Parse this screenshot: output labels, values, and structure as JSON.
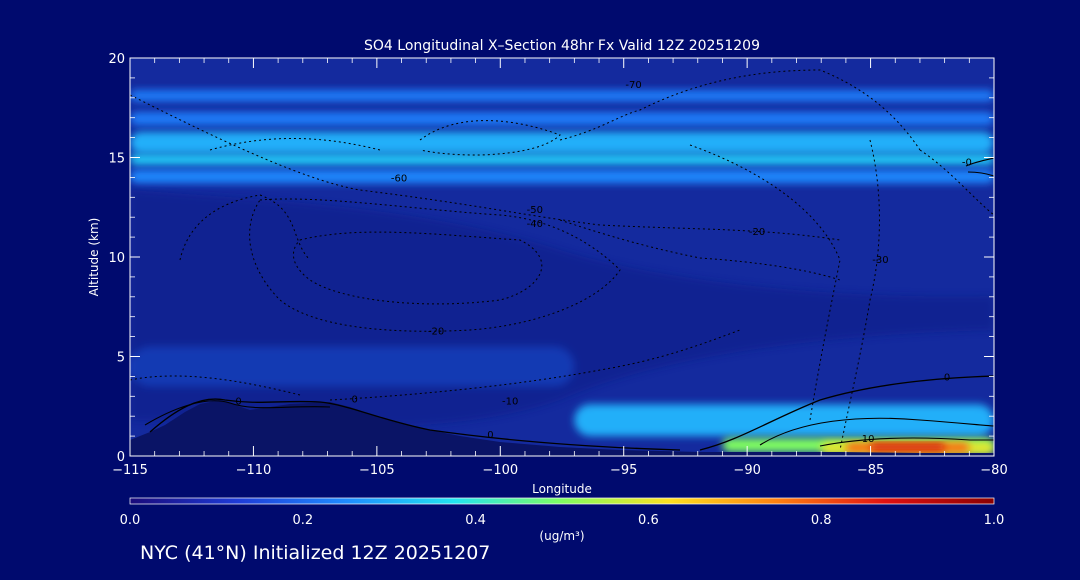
{
  "colors": {
    "background": "#000a6e",
    "plot_base": "#142a9e",
    "axis": "#ffffff",
    "contour": "#000000",
    "colorbar_stops": [
      "#1a0a7a",
      "#1e3cd8",
      "#1e8cff",
      "#22e4f0",
      "#80ff60",
      "#ffe020",
      "#ff8010",
      "#e01010",
      "#8a0000"
    ]
  },
  "footer": {
    "text": "NYC (41°N) Initialized 12Z 20251207"
  },
  "chart_data": {
    "type": "heatmap",
    "title": "SO4 Longitudinal X–Section 48hr  Fx Valid 12Z 20251209",
    "xlabel": "Longitude",
    "ylabel": "Altitude (km)",
    "xlim": [
      -115,
      -80
    ],
    "ylim": [
      0,
      20
    ],
    "xticks": [
      -115,
      -110,
      -105,
      -100,
      -95,
      -90,
      -85,
      -80
    ],
    "xtick_labels": [
      "−115",
      "−110",
      "−105",
      "−100",
      "−95",
      "−90",
      "−85",
      "−80"
    ],
    "yticks": [
      0,
      5,
      10,
      15,
      20
    ],
    "ytick_labels": [
      "0",
      "5",
      "10",
      "15",
      "20"
    ],
    "grid": false,
    "colorbar": {
      "label": "(ug/m³)",
      "range": [
        0.0,
        1.0
      ],
      "ticks": [
        0.0,
        0.2,
        0.4,
        0.6,
        0.8,
        1.0
      ],
      "tick_labels": [
        "0.0",
        "0.2",
        "0.4",
        "0.6",
        "0.8",
        "1.0"
      ]
    },
    "concentration_bands": [
      {
        "x": [
          -115,
          -80
        ],
        "y": [
          17.8,
          18.4
        ],
        "value": 0.22
      },
      {
        "x": [
          -115,
          -80
        ],
        "y": [
          16.6,
          17.3
        ],
        "value": 0.22
      },
      {
        "x": [
          -115,
          -80
        ],
        "y": [
          15.2,
          16.3
        ],
        "value": 0.3
      },
      {
        "x": [
          -115,
          -80
        ],
        "y": [
          14.6,
          15.2
        ],
        "value": 0.33
      },
      {
        "x": [
          -115,
          -80
        ],
        "y": [
          13.7,
          14.4
        ],
        "value": 0.24
      },
      {
        "x": [
          -115,
          -97
        ],
        "y": [
          3.5,
          5.5
        ],
        "value": 0.18
      },
      {
        "x": [
          -97,
          -80
        ],
        "y": [
          1.0,
          2.6
        ],
        "value": 0.3
      },
      {
        "x": [
          -91,
          -80
        ],
        "y": [
          0.2,
          0.9
        ],
        "value": 0.5
      },
      {
        "x": [
          -87,
          -80
        ],
        "y": [
          0.1,
          0.7
        ],
        "value": 0.6
      },
      {
        "x": [
          -86,
          -81
        ],
        "y": [
          0.2,
          0.65
        ],
        "value": 0.78
      },
      {
        "x": [
          -85,
          -82
        ],
        "y": [
          0.3,
          0.6
        ],
        "value": 0.9
      }
    ],
    "contour_labels": [
      {
        "text": "-70",
        "x": -94.6,
        "y": 18.5
      },
      {
        "text": "-60",
        "x": -104.1,
        "y": 13.8
      },
      {
        "text": "-50",
        "x": -98.6,
        "y": 12.2
      },
      {
        "text": "-40",
        "x": -98.6,
        "y": 11.5
      },
      {
        "text": "-20",
        "x": -89.6,
        "y": 11.1
      },
      {
        "text": "-30",
        "x": -84.6,
        "y": 9.7
      },
      {
        "text": "-0",
        "x": -81.1,
        "y": 14.6
      },
      {
        "text": "-20",
        "x": -102.6,
        "y": 6.1
      },
      {
        "text": "-10",
        "x": -99.6,
        "y": 2.6
      },
      {
        "text": "0",
        "x": -110.6,
        "y": 2.6
      },
      {
        "text": "0",
        "x": -105.9,
        "y": 2.7
      },
      {
        "text": "0",
        "x": -100.4,
        "y": 0.9
      },
      {
        "text": "0",
        "x": -81.9,
        "y": 3.8
      },
      {
        "text": "10",
        "x": -85.1,
        "y": 0.7
      }
    ]
  }
}
